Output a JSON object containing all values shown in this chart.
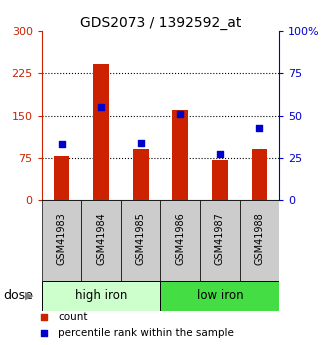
{
  "title": "GDS2073 / 1392592_at",
  "categories": [
    "GSM41983",
    "GSM41984",
    "GSM41985",
    "GSM41986",
    "GSM41987",
    "GSM41988"
  ],
  "bar_values": [
    78,
    242,
    90,
    160,
    72,
    90
  ],
  "dot_values_left": [
    100,
    165,
    102,
    152,
    82,
    128
  ],
  "ylim_left": [
    0,
    300
  ],
  "ylim_right": [
    0,
    100
  ],
  "yticks_left": [
    0,
    75,
    150,
    225,
    300
  ],
  "ytick_labels_left": [
    "0",
    "75",
    "150",
    "225",
    "300"
  ],
  "yticks_right": [
    0,
    25,
    50,
    75,
    100
  ],
  "ytick_labels_right": [
    "0",
    "25",
    "50",
    "75",
    "100%"
  ],
  "bar_color": "#cc2200",
  "dot_color": "#0000cc",
  "group1_label": "high iron",
  "group2_label": "low iron",
  "group1_bg": "#ccffcc",
  "group2_bg": "#44dd44",
  "dose_label": "dose",
  "legend_count": "count",
  "legend_pct": "percentile rank within the sample",
  "left_axis_color": "#cc2200",
  "right_axis_color": "#0000cc",
  "tick_bg": "#cccccc",
  "bar_width": 0.4
}
